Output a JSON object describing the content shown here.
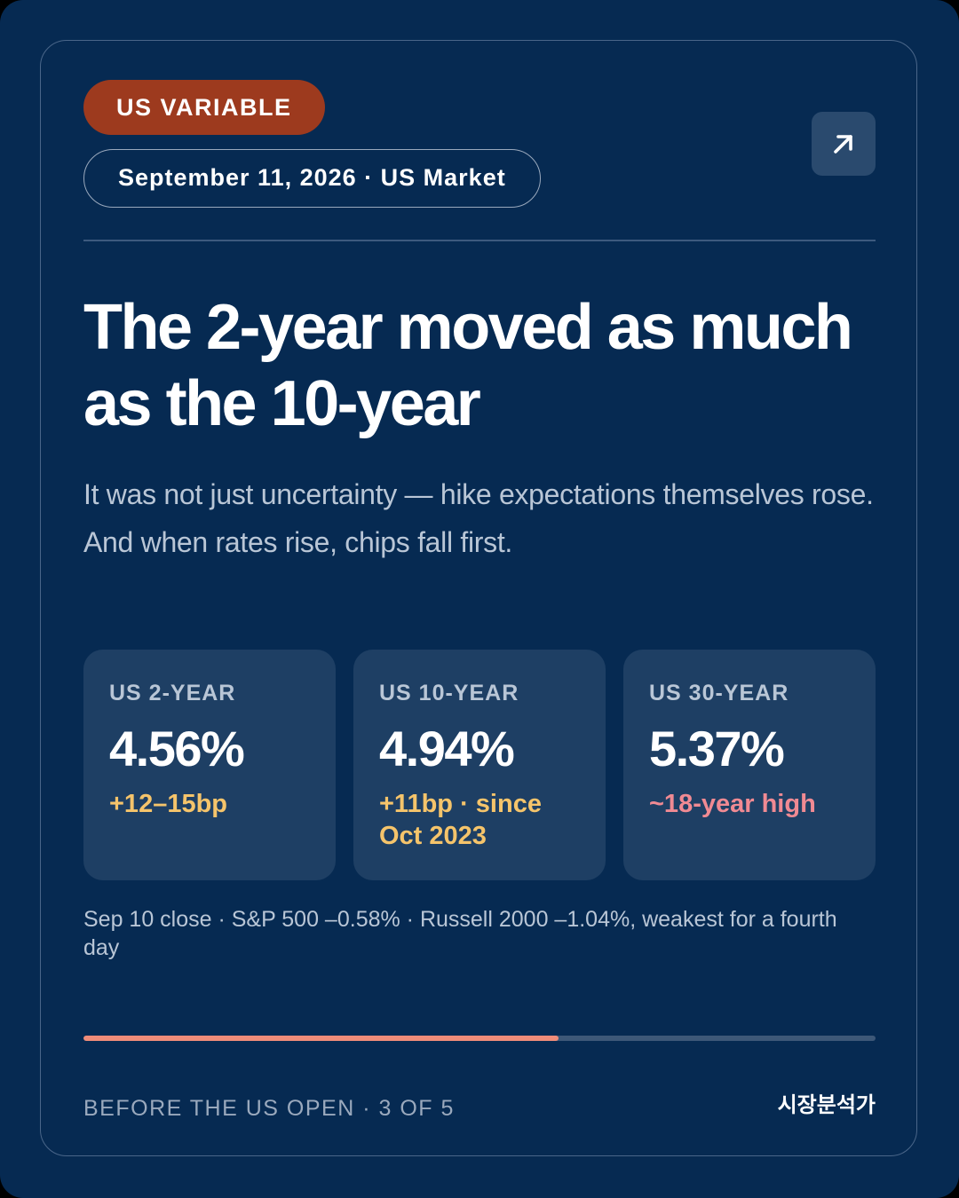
{
  "badge": {
    "label": "US VARIABLE",
    "color": "#9d3a1e"
  },
  "meta": {
    "label": "September 11, 2026 · US Market"
  },
  "share_button": {
    "icon": "arrow-up-right-icon"
  },
  "headline": "The 2-year moved as much as the 10-year",
  "subtitle": "It was not just uncertainty — hike expectations themselves rose. And when rates rise, chips fall first.",
  "stats": [
    {
      "label": "US 2-YEAR",
      "value": "4.56%",
      "change": "+12–15bp",
      "change_color": "#f5c46b"
    },
    {
      "label": "US 10-YEAR",
      "value": "4.94%",
      "change": "+11bp · since Oct 2023",
      "change_color": "#f5c46b"
    },
    {
      "label": "US 30-YEAR",
      "value": "5.37%",
      "change": "~18-year high",
      "change_color": "#f08a93"
    }
  ],
  "footnote": "Sep 10 close · S&P 500 –0.58% · Russell 2000 –1.04%, weakest for a fourth day",
  "progress": {
    "current": 3,
    "total": 5,
    "fill_color": "#ef8c79"
  },
  "footer": {
    "left_label": "BEFORE THE US OPEN · 3 OF 5",
    "brand": "시장분석가"
  },
  "colors": {
    "background": "#062a52",
    "card_bg": "#1e3f64"
  }
}
